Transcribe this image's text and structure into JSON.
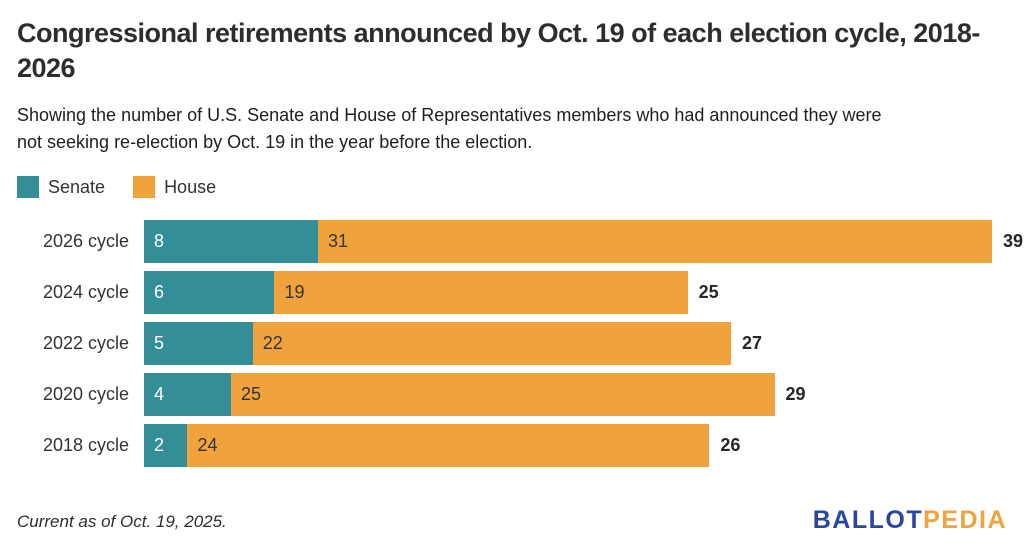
{
  "header": {
    "title": "Congressional retirements announced by Oct. 19 of each election cycle, 2018-2026",
    "subtitle": "Showing the number of U.S. Senate and House of Representatives members who had announced they were not seeking re-election by Oct. 19 in the year before the election."
  },
  "legend": [
    {
      "label": "Senate",
      "color": "#348e97"
    },
    {
      "label": "House",
      "color": "#f0a33c"
    }
  ],
  "chart_data": {
    "type": "bar",
    "orientation": "horizontal",
    "stacked": true,
    "title": "Congressional retirements announced by Oct. 19 of each election cycle, 2018-2026",
    "categories": [
      "2026 cycle",
      "2024 cycle",
      "2022 cycle",
      "2020 cycle",
      "2018 cycle"
    ],
    "series": [
      {
        "name": "Senate",
        "color": "#348e97",
        "value_label_color": "#ffffff",
        "values": [
          8,
          6,
          5,
          4,
          2
        ]
      },
      {
        "name": "House",
        "color": "#f0a33c",
        "value_label_color": "#333333",
        "values": [
          31,
          19,
          22,
          25,
          24
        ]
      }
    ],
    "totals": [
      39,
      25,
      27,
      29,
      26
    ],
    "xlim": [
      0,
      39
    ],
    "grid": "off",
    "legend_position": "top-left",
    "value_label_position": "inside-start",
    "total_label_position": "outside-end"
  },
  "footer": {
    "note": "Current as of Oct. 19, 2025.",
    "logo": {
      "ballot": "BALLOT",
      "pedia": "PEDIA",
      "ballot_color": "#2a45a4",
      "pedia_color": "#f0a33c"
    }
  }
}
